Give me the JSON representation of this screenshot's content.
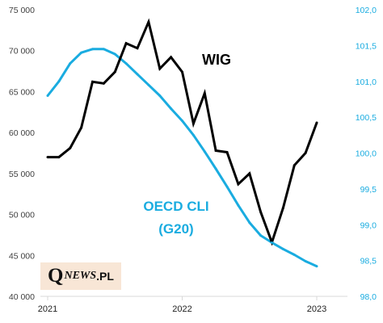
{
  "chart_data": {
    "type": "line",
    "title": "",
    "xlabel": "",
    "y_left": {
      "range": [
        40000,
        75000
      ],
      "ticks": [
        "40 000",
        "45 000",
        "50 000",
        "55 000",
        "60 000",
        "65 000",
        "70 000",
        "75 000"
      ],
      "tick_values": [
        40000,
        45000,
        50000,
        55000,
        60000,
        65000,
        70000,
        75000
      ]
    },
    "y_right": {
      "range": [
        98.0,
        102.0
      ],
      "ticks": [
        "98,0",
        "98,5",
        "99,0",
        "99,5",
        "100,0",
        "100,5",
        "101,0",
        "101,5",
        "102,0"
      ],
      "tick_values": [
        98.0,
        98.5,
        99.0,
        99.5,
        100.0,
        100.5,
        101.0,
        101.5,
        102.0
      ]
    },
    "x_axis": {
      "range": [
        "2021-01",
        "2023-01"
      ],
      "ticks": [
        "2021",
        "2022",
        "2023"
      ],
      "tick_dates": [
        "2021-01",
        "2022-01",
        "2023-01"
      ]
    },
    "grid": false,
    "series": [
      {
        "name": "WIG",
        "axis": "left",
        "color": "#000000",
        "x": [
          "2021-01",
          "2021-02",
          "2021-03",
          "2021-04",
          "2021-05",
          "2021-06",
          "2021-07",
          "2021-08",
          "2021-09",
          "2021-10",
          "2021-11",
          "2021-12",
          "2022-01",
          "2022-02",
          "2022-03",
          "2022-04",
          "2022-05",
          "2022-06",
          "2022-07",
          "2022-08",
          "2022-09",
          "2022-10",
          "2022-11",
          "2022-12",
          "2023-01"
        ],
        "values": [
          57000,
          57000,
          58100,
          60600,
          66200,
          66000,
          67400,
          70900,
          70300,
          73500,
          67800,
          69200,
          67400,
          61100,
          64800,
          57800,
          57600,
          53700,
          55000,
          50300,
          46600,
          50800,
          56000,
          57500,
          61200
        ]
      },
      {
        "name": "OECD CLI (G20)",
        "axis": "right",
        "color": "#1aace0",
        "x": [
          "2021-01",
          "2021-02",
          "2021-03",
          "2021-04",
          "2021-05",
          "2021-06",
          "2021-07",
          "2021-08",
          "2021-09",
          "2021-10",
          "2021-11",
          "2021-12",
          "2022-01",
          "2022-02",
          "2022-03",
          "2022-04",
          "2022-05",
          "2022-06",
          "2022-07",
          "2022-08",
          "2022-09",
          "2022-10",
          "2022-11",
          "2022-12",
          "2023-01"
        ],
        "values": [
          100.8,
          101.0,
          101.25,
          101.4,
          101.45,
          101.45,
          101.38,
          101.25,
          101.1,
          100.95,
          100.8,
          100.62,
          100.45,
          100.25,
          100.02,
          99.78,
          99.53,
          99.27,
          99.03,
          98.85,
          98.75,
          98.66,
          98.58,
          98.49,
          98.42
        ]
      }
    ]
  },
  "labels": {
    "wig": "WIG",
    "oecd_line1": "OECD  CLI",
    "oecd_line2": "(G20)"
  },
  "logo": {
    "q": "Q",
    "rest": "NEWS",
    "pl": ".PL"
  },
  "colors": {
    "wig": "#000000",
    "oecd": "#1aace0",
    "axis": "#d9d9d9",
    "logo_bg": "#f8e6d6"
  }
}
